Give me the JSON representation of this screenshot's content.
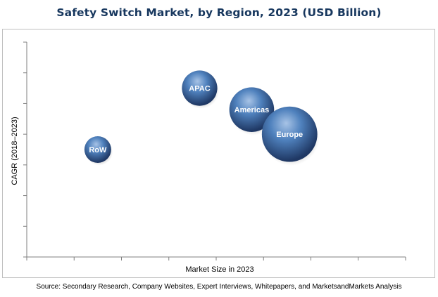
{
  "chart_data": {
    "type": "scatter",
    "subtype": "bubble",
    "title": "Safety Switch Market, by Region, 2023 (USD Billion)",
    "xlabel": "Market Size in 2023",
    "ylabel": "CAGR (2018–2023)",
    "xlim": [
      0,
      8
    ],
    "ylim": [
      0,
      7
    ],
    "axis_tick_labels": false,
    "grid": false,
    "legend": "none",
    "series": [
      {
        "points": [
          {
            "label": "RoW",
            "x": 1.5,
            "y": 3.5,
            "size": 1.0
          },
          {
            "label": "APAC",
            "x": 3.65,
            "y": 5.5,
            "size": 1.75
          },
          {
            "label": "Americas",
            "x": 4.75,
            "y": 4.8,
            "size": 2.8
          },
          {
            "label": "Europe",
            "x": 5.55,
            "y": 4.0,
            "size": 4.3
          }
        ]
      }
    ]
  },
  "source": "Source: Secondary Research, Company Websites, Expert Interviews, Whitepapers, and MarketsandMarkets Analysis",
  "colors": {
    "title": "#17375e",
    "bubble_light": "#95b3d7",
    "bubble_mid": "#4f81bd",
    "bubble_dark": "#1f3864",
    "axis": "#7f7f7f"
  }
}
